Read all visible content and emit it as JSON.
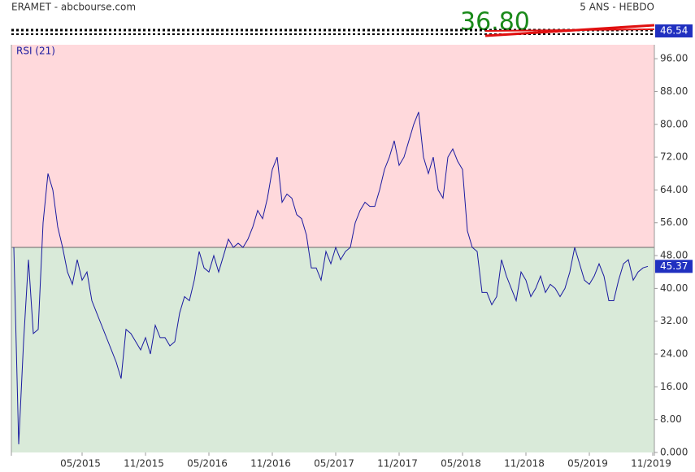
{
  "chart_data": {
    "type": "line",
    "title": "ERAMET - abcbourse.com",
    "subtitle": "5 ANS - HEBDO",
    "annotations": [
      "36.80"
    ],
    "price_last": 46.54,
    "current_value": 45.37,
    "threshold": 50,
    "upper_color": "#ffd9dc",
    "lower_color": "#d9ead9",
    "categories": [
      null,
      null,
      null,
      null,
      null,
      null,
      null,
      null,
      null,
      null,
      null,
      null,
      null,
      null,
      "05/2015",
      null,
      null,
      null,
      null,
      null,
      null,
      null,
      null,
      null,
      null,
      null,
      null,
      "11/2015",
      null,
      null,
      null,
      null,
      null,
      null,
      null,
      null,
      null,
      null,
      null,
      null,
      "05/2016",
      null,
      null,
      null,
      null,
      null,
      null,
      null,
      null,
      null,
      null,
      null,
      null,
      "11/2016",
      null,
      null,
      null,
      null,
      null,
      null,
      null,
      null,
      null,
      null,
      null,
      null,
      "05/2017",
      null,
      null,
      null,
      null,
      null,
      null,
      null,
      null,
      null,
      null,
      null,
      null,
      "11/2017",
      null,
      null,
      null,
      null,
      null,
      null,
      null,
      null,
      null,
      null,
      null,
      null,
      "05/2018",
      null,
      null,
      null,
      null,
      null,
      null,
      null,
      null,
      null,
      null,
      null,
      null,
      "11/2018",
      null,
      null,
      null,
      null,
      null,
      null,
      null,
      null,
      null,
      null,
      null,
      null,
      "05/2019",
      null,
      null,
      null,
      null,
      null,
      null,
      null,
      null,
      null,
      null,
      null,
      null,
      "11/2019"
    ],
    "series": [
      {
        "name": "RSI (21)",
        "color": "#1a1aa0",
        "values": [
          50,
          2,
          27,
          47,
          29,
          30,
          56,
          68,
          64,
          55,
          50,
          44,
          41,
          47,
          42,
          44,
          37,
          34,
          31,
          28,
          25,
          22,
          18,
          30,
          29,
          27,
          25,
          28,
          24,
          31,
          28,
          28,
          26,
          27,
          34,
          38,
          37,
          42,
          49,
          45,
          44,
          48,
          44,
          48,
          52,
          50,
          51,
          50,
          52,
          55,
          59,
          57,
          62,
          69,
          72,
          61,
          63,
          62,
          58,
          57,
          53,
          45,
          45,
          42,
          49,
          46,
          50,
          47,
          49,
          50,
          56,
          59,
          61,
          60,
          60,
          64,
          69,
          72,
          76,
          70,
          72,
          76,
          80,
          83,
          72,
          68,
          72,
          64,
          62,
          72,
          74,
          71,
          69,
          54,
          50,
          49,
          39,
          39,
          36,
          38,
          47,
          43,
          40,
          37,
          44,
          42,
          38,
          40,
          43,
          39,
          41,
          40,
          38,
          40,
          44,
          50,
          46,
          42,
          41,
          43,
          46,
          43,
          37,
          37,
          42,
          46,
          47,
          42,
          44,
          45,
          45.37,
          null
        ]
      }
    ],
    "ylim": [
      0,
      99.4
    ],
    "yticks": [
      {
        "value": 0,
        "label": "0.000"
      },
      {
        "value": 8,
        "label": "8.00"
      },
      {
        "value": 16,
        "label": "16.00"
      },
      {
        "value": 24,
        "label": "24.00"
      },
      {
        "value": 32,
        "label": "32.00"
      },
      {
        "value": 40,
        "label": "40.00"
      },
      {
        "value": 48,
        "label": "48.00"
      },
      {
        "value": 56,
        "label": "56.00"
      },
      {
        "value": 64,
        "label": "64.00"
      },
      {
        "value": 72,
        "label": "72.00"
      },
      {
        "value": 80,
        "label": "80.00"
      },
      {
        "value": 88,
        "label": "88.00"
      },
      {
        "value": 96,
        "label": "96.00"
      }
    ]
  }
}
